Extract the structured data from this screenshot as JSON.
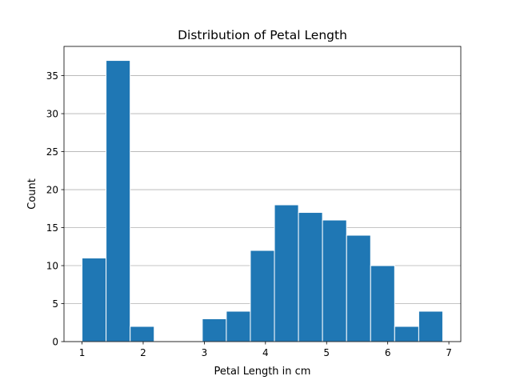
{
  "chart_data": {
    "type": "bar",
    "title": "Distribution of Petal Length",
    "xlabel": "Petal Length in cm",
    "ylabel": "Count",
    "xlim": [
      0.705,
      7.195
    ],
    "ylim": [
      0,
      38.85
    ],
    "xticks": [
      "1",
      "2",
      "3",
      "4",
      "5",
      "6",
      "7"
    ],
    "yticks": [
      "0",
      "5",
      "10",
      "15",
      "20",
      "25",
      "30",
      "35"
    ],
    "grid": "y",
    "bins": [
      {
        "x0": 1.0,
        "x1": 1.393,
        "value": 11
      },
      {
        "x0": 1.393,
        "x1": 1.787,
        "value": 37
      },
      {
        "x0": 1.787,
        "x1": 2.18,
        "value": 2
      },
      {
        "x0": 2.18,
        "x1": 2.573,
        "value": 0
      },
      {
        "x0": 2.573,
        "x1": 2.967,
        "value": 0
      },
      {
        "x0": 2.967,
        "x1": 3.36,
        "value": 3
      },
      {
        "x0": 3.36,
        "x1": 3.753,
        "value": 4
      },
      {
        "x0": 3.753,
        "x1": 4.147,
        "value": 12
      },
      {
        "x0": 4.147,
        "x1": 4.54,
        "value": 18
      },
      {
        "x0": 4.54,
        "x1": 4.933,
        "value": 17
      },
      {
        "x0": 4.933,
        "x1": 5.327,
        "value": 16
      },
      {
        "x0": 5.327,
        "x1": 5.72,
        "value": 14
      },
      {
        "x0": 5.72,
        "x1": 6.113,
        "value": 10
      },
      {
        "x0": 6.113,
        "x1": 6.507,
        "value": 2
      },
      {
        "x0": 6.507,
        "x1": 6.9,
        "value": 4
      }
    ],
    "bar_color": "#1f77b4"
  }
}
